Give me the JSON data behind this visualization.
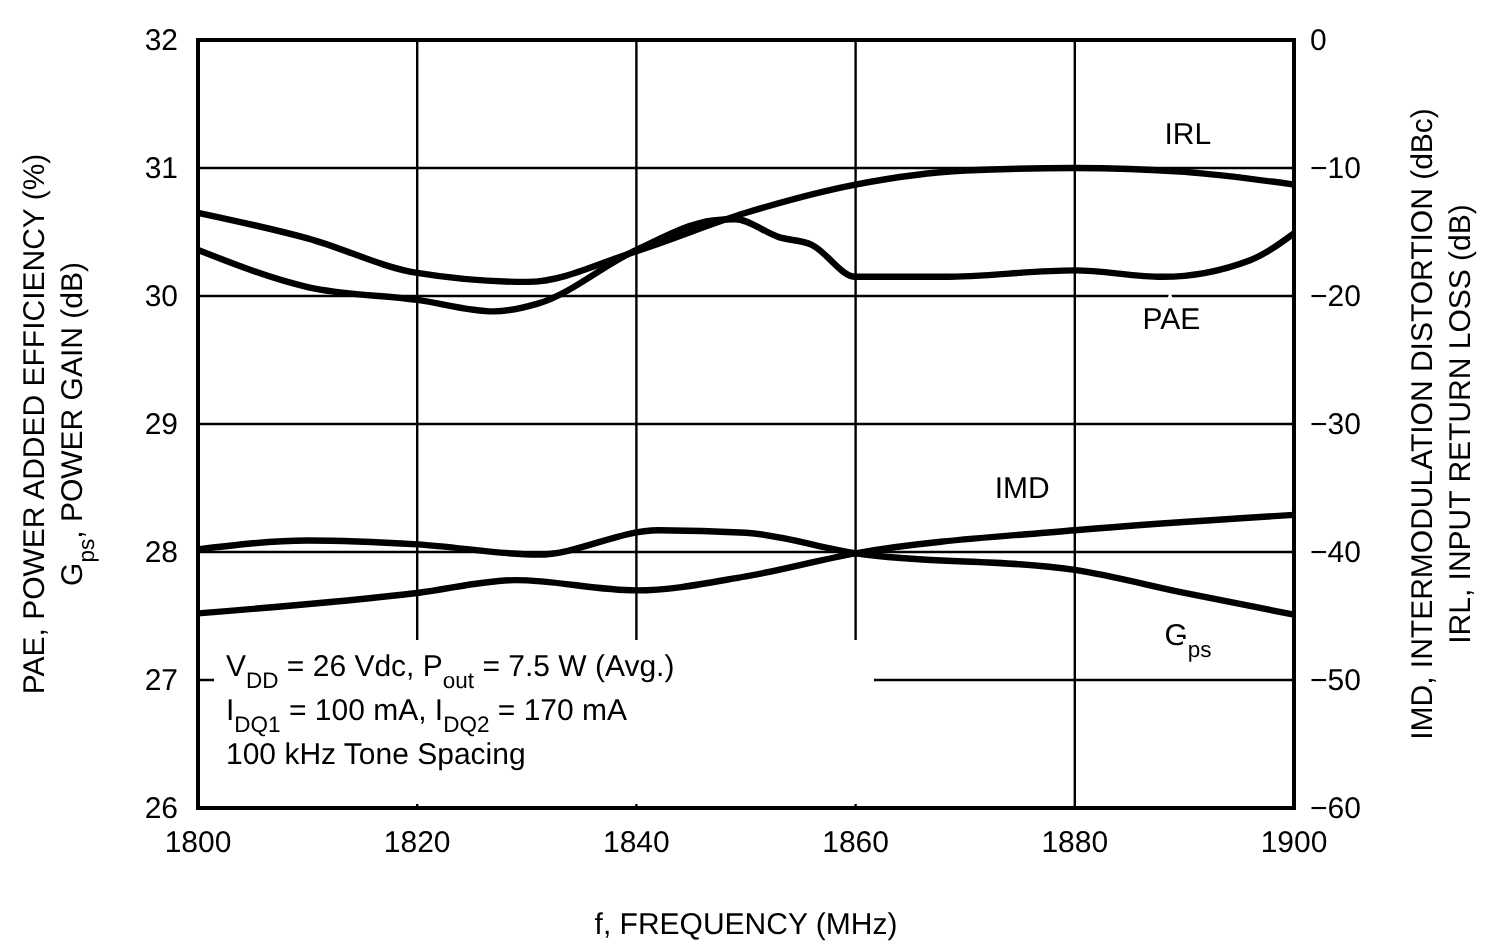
{
  "chart_data": {
    "type": "line",
    "xlabel": "f, FREQUENCY (MHz)",
    "ylabel": "PAE, POWER ADDED EFFICIENCY (%)\nG$_{ps}$, POWER GAIN (dB)",
    "y2label": "IMD, INTERMODULATION DISTORTION (dBc)\nIRL, INPUT RETURN LOSS (dB)",
    "xlim": [
      1800,
      1900
    ],
    "xticks": [
      1800,
      1820,
      1840,
      1860,
      1880,
      1900
    ],
    "ylim": [
      26,
      32
    ],
    "yticks": [
      26,
      27,
      28,
      29,
      30,
      31,
      32
    ],
    "y2lim": [
      -60,
      0
    ],
    "y2ticks": [
      {
        "value": -60,
        "label": "−60"
      },
      {
        "value": -50,
        "label": "−50"
      },
      {
        "value": -40,
        "label": "−40"
      },
      {
        "value": -30,
        "label": "−30"
      },
      {
        "value": -20,
        "label": "−20"
      },
      {
        "value": -10,
        "label": "−10"
      },
      0
    ],
    "grid": true,
    "marker": "none",
    "line_style": "solid",
    "series": [
      {
        "name": "IRL",
        "color": "#000000",
        "axis": "y2",
        "x": [
          1800,
          1810,
          1820,
          1830,
          1840,
          1850,
          1860,
          1870,
          1880,
          1890,
          1900
        ],
        "values": [
          -13.5,
          -15.5,
          -18.2,
          -18.9,
          -16.5,
          -13.5,
          -11.3,
          -10.2,
          -10.0,
          -10.3,
          -11.3
        ]
      },
      {
        "name": "PAE",
        "color": "#000000",
        "x": [
          1800,
          1810,
          1820,
          1827,
          1831,
          1840,
          1847,
          1849,
          1853,
          1856,
          1860,
          1868,
          1880,
          1888,
          1896,
          1900
        ],
        "values": [
          30.36,
          30.07,
          29.97,
          29.88,
          29.94,
          30.36,
          30.59,
          30.6,
          30.46,
          30.4,
          30.15,
          30.15,
          30.2,
          30.15,
          30.28,
          30.49
        ]
      },
      {
        "name": "IMD",
        "color": "#000000",
        "axis": "y2",
        "x": [
          1800,
          1820,
          1829,
          1840,
          1850,
          1860,
          1880,
          1900
        ],
        "values": [
          -44.8,
          -43.2,
          -42.2,
          -43.0,
          -41.9,
          -40.1,
          -38.3,
          -37.1
        ]
      },
      {
        "name": "G$_{ps}$",
        "color": "#000000",
        "x": [
          1800,
          1810,
          1820,
          1831,
          1842,
          1850,
          1860,
          1880,
          1890,
          1900
        ],
        "values": [
          28.02,
          28.09,
          28.06,
          27.98,
          28.17,
          28.15,
          27.99,
          27.86,
          27.68,
          27.51
        ]
      }
    ],
    "annotations": [
      "V$_{DD}$ = 26 Vdc, P$_{out}$ = 7.5 W (Avg.)",
      "I$_{DQ1}$ = 100 mA, I$_{DQ2}$ = 170 mA",
      "100 kHz Tone Spacing"
    ]
  }
}
